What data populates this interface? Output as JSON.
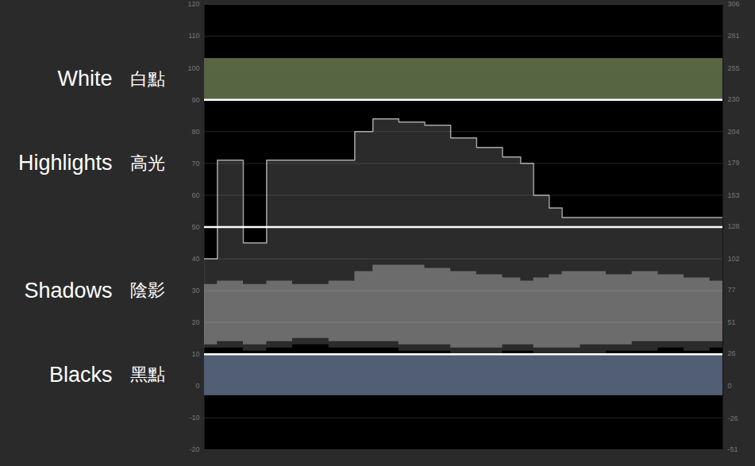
{
  "chart_data": {
    "type": "waveform",
    "ylim": [
      -20,
      120
    ],
    "yticks": [
      -20,
      -10,
      0,
      10,
      20,
      30,
      40,
      50,
      60,
      70,
      80,
      90,
      100,
      110,
      120
    ],
    "y2lim": [
      -51,
      306
    ],
    "y2ticks": [
      -51,
      -26,
      0,
      26,
      51,
      77,
      102,
      128,
      153,
      179,
      204,
      230,
      255,
      281,
      306
    ],
    "xlim": [
      0,
      100
    ],
    "grid": true,
    "tick_labels": "y",
    "zones": [
      {
        "label": "White",
        "label_zh": "白點",
        "from": 90,
        "to": 103,
        "color": "#5e6e48"
      },
      {
        "label": "Highlights",
        "label_zh": "高光",
        "from": 50,
        "to": 90,
        "color": null
      },
      {
        "label": "Shadows",
        "label_zh": "陰影",
        "from": 10,
        "to": 50,
        "color": null
      },
      {
        "label": "Blacks",
        "label_zh": "黑點",
        "from": -3,
        "to": 10,
        "color": "#58667d"
      }
    ],
    "lines": [
      90,
      50,
      10
    ],
    "waveform": {
      "x": [
        0,
        5,
        10,
        14,
        20,
        28,
        30,
        35,
        40,
        45,
        50,
        55,
        60,
        62,
        65,
        68,
        70,
        75,
        80,
        85,
        90,
        95,
        100
      ],
      "low": [
        12,
        12,
        11,
        12,
        13,
        12,
        12,
        12,
        11,
        11,
        10,
        10,
        11,
        11,
        10,
        10,
        10,
        10,
        11,
        11,
        12,
        11,
        12
      ],
      "high": [
        40,
        71,
        45,
        71,
        71,
        71,
        80,
        84,
        83,
        82,
        78,
        75,
        72,
        70,
        60,
        56,
        53,
        53,
        53,
        53,
        53,
        53,
        53
      ],
      "core_low": [
        13,
        14,
        13,
        14,
        15,
        14,
        14,
        14,
        13,
        13,
        12,
        12,
        13,
        13,
        12,
        12,
        12,
        13,
        13,
        14,
        14,
        14,
        14
      ],
      "core_high": [
        32,
        33,
        32,
        33,
        32,
        33,
        36,
        38,
        38,
        37,
        36,
        35,
        34,
        33,
        34,
        35,
        36,
        36,
        35,
        36,
        35,
        34,
        33
      ]
    }
  }
}
